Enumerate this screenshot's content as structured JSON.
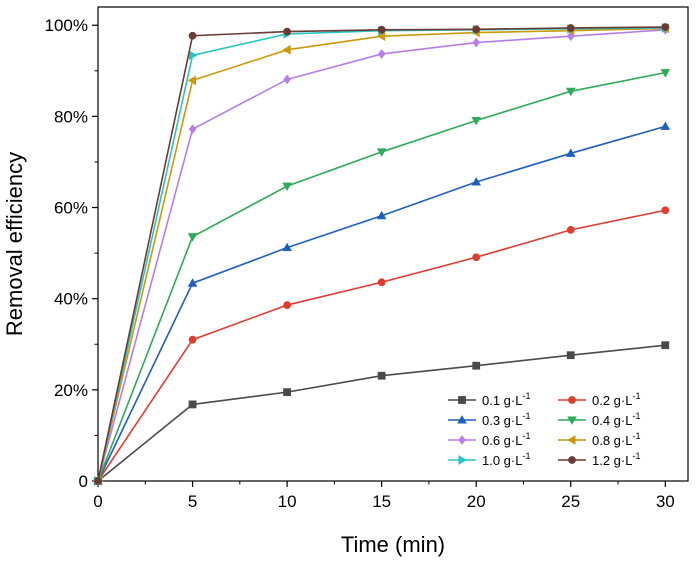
{
  "chart_data": {
    "type": "line",
    "xlabel": "Time (min)",
    "ylabel": "Removal efficiency",
    "xlim": [
      0,
      31.2
    ],
    "ylim": [
      0,
      104
    ],
    "x_ticks": [
      {
        "value": 0,
        "label": "0"
      },
      {
        "value": 5,
        "label": "5"
      },
      {
        "value": 10,
        "label": "10"
      },
      {
        "value": 15,
        "label": "15"
      },
      {
        "value": 20,
        "label": "20"
      },
      {
        "value": 25,
        "label": "25"
      },
      {
        "value": 30,
        "label": "30"
      }
    ],
    "y_ticks": [
      {
        "value": 0,
        "label": "0"
      },
      {
        "value": 20,
        "label": "20%"
      },
      {
        "value": 40,
        "label": "40%"
      },
      {
        "value": 60,
        "label": "60%"
      },
      {
        "value": 80,
        "label": "80%"
      },
      {
        "value": 100,
        "label": "100%"
      }
    ],
    "grid": false,
    "legend_position": "bottom-right",
    "x": [
      0,
      5,
      10,
      15,
      20,
      25,
      30
    ],
    "series": [
      {
        "name": "0.1 g·L",
        "sup": "-1",
        "color": "#4a4a4a",
        "marker": "square",
        "values": [
          0,
          16.8,
          19.5,
          23.1,
          25.3,
          27.6,
          29.8
        ]
      },
      {
        "name": "0.2 g·L",
        "sup": "-1",
        "color": "#e03c31",
        "marker": "circle",
        "values": [
          0,
          31.0,
          38.6,
          43.6,
          49.1,
          55.1,
          59.4
        ]
      },
      {
        "name": "0.3 g·L",
        "sup": "-1",
        "color": "#1f5fbf",
        "marker": "triangle-up",
        "values": [
          0,
          43.4,
          51.2,
          58.2,
          65.6,
          71.9,
          77.8
        ]
      },
      {
        "name": "0.4 g·L",
        "sup": "-1",
        "color": "#2eaa5b",
        "marker": "triangle-down",
        "values": [
          0,
          53.6,
          64.7,
          72.2,
          79.1,
          85.5,
          89.6
        ]
      },
      {
        "name": "0.6 g·L",
        "sup": "-1",
        "color": "#b57ee8",
        "marker": "diamond",
        "values": [
          0,
          77.2,
          88.1,
          93.7,
          96.2,
          97.6,
          99.0
        ]
      },
      {
        "name": "0.8 g·L",
        "sup": "-1",
        "color": "#c99a0a",
        "marker": "triangle-left",
        "values": [
          0,
          87.9,
          94.6,
          97.6,
          98.4,
          98.8,
          99.3
        ]
      },
      {
        "name": "1.0 g·L",
        "sup": "-1",
        "color": "#29c4c4",
        "marker": "triangle-right",
        "values": [
          0,
          93.4,
          98.1,
          98.8,
          99.0,
          99.2,
          99.4
        ]
      },
      {
        "name": "1.2 g·L",
        "sup": "-1",
        "color": "#6b3a34",
        "marker": "circle",
        "values": [
          0,
          97.7,
          98.6,
          99.0,
          99.1,
          99.4,
          99.6
        ]
      }
    ]
  }
}
